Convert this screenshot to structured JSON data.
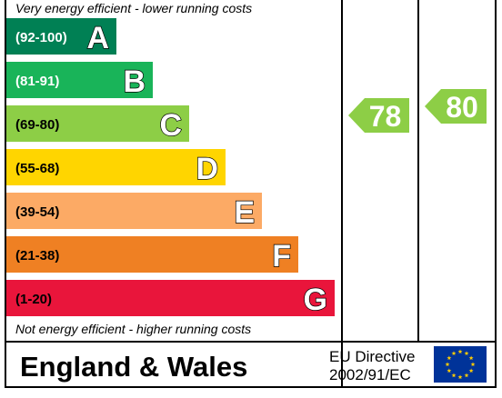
{
  "chart_data": {
    "type": "bar",
    "top_note": "Very energy efficient - lower running costs",
    "bottom_note": "Not energy efficient - higher running costs",
    "bands": [
      {
        "letter": "A",
        "range": "(92-100)",
        "color": "#008054",
        "label_color": "#ffffff"
      },
      {
        "letter": "B",
        "range": "(81-91)",
        "color": "#19b459",
        "label_color": "#ffffff"
      },
      {
        "letter": "C",
        "range": "(69-80)",
        "color": "#8dce46",
        "label_color": "#000000"
      },
      {
        "letter": "D",
        "range": "(55-68)",
        "color": "#ffd500",
        "label_color": "#000000"
      },
      {
        "letter": "E",
        "range": "(39-54)",
        "color": "#fcaa65",
        "label_color": "#000000"
      },
      {
        "letter": "F",
        "range": "(21-38)",
        "color": "#ef8023",
        "label_color": "#000000"
      },
      {
        "letter": "G",
        "range": "(1-20)",
        "color": "#e9153b",
        "label_color": "#000000"
      }
    ],
    "current_rating": {
      "value": 78,
      "band": "C"
    },
    "potential_rating": {
      "value": 80,
      "band": "C"
    }
  },
  "footer": {
    "region": "England & Wales",
    "directive_line1": "EU Directive",
    "directive_line2": "2002/91/EC"
  },
  "colors": {
    "score_arrow": "#8dce46",
    "eu_flag_blue": "#003399",
    "eu_flag_star": "#ffcc00"
  }
}
